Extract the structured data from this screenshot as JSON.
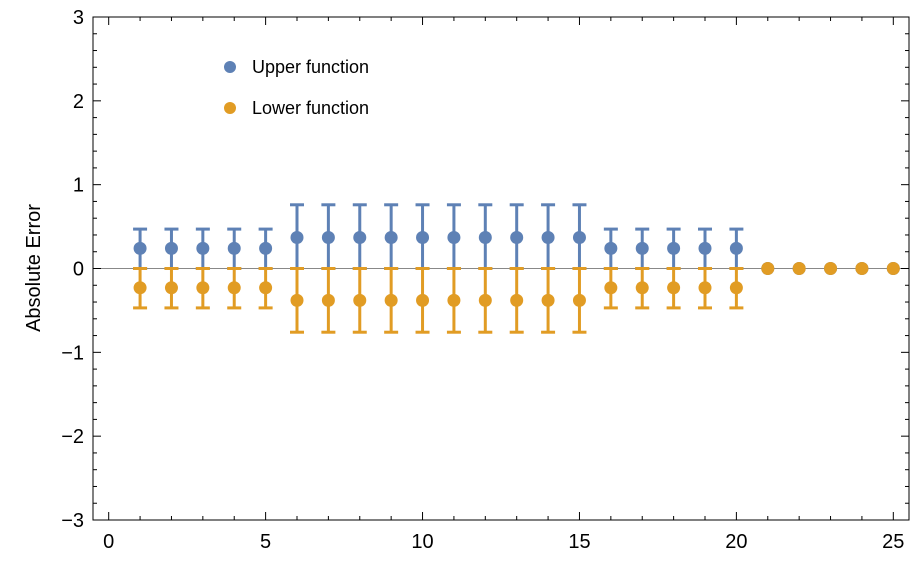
{
  "chart_data": {
    "type": "scatter",
    "title": "",
    "xlabel": "",
    "ylabel": "Absolute Error",
    "xlim": [
      -0.5,
      25.5
    ],
    "ylim": [
      -3,
      3
    ],
    "xticks": [
      0,
      5,
      10,
      15,
      20,
      25
    ],
    "xtick_labels": [
      "0",
      "5",
      "10",
      "15",
      "20",
      "25"
    ],
    "yticks": [
      -3,
      -2,
      -1,
      0,
      1,
      2,
      3
    ],
    "ytick_labels": [
      "−3",
      "−2",
      "−1",
      "0",
      "1",
      "2",
      "3"
    ],
    "grid": false,
    "legend_position": "top-left",
    "series": [
      {
        "name": "Upper function",
        "color": "#5e81b5",
        "x": [
          1,
          2,
          3,
          4,
          5,
          6,
          7,
          8,
          9,
          10,
          11,
          12,
          13,
          14,
          15,
          16,
          17,
          18,
          19,
          20,
          21,
          22,
          23,
          24,
          25
        ],
        "values": [
          0.24,
          0.24,
          0.24,
          0.24,
          0.24,
          0.37,
          0.37,
          0.37,
          0.37,
          0.37,
          0.37,
          0.37,
          0.37,
          0.37,
          0.37,
          0.24,
          0.24,
          0.24,
          0.24,
          0.24,
          0,
          0,
          0,
          0,
          0
        ],
        "error_low": [
          0,
          0,
          0,
          0,
          0,
          0,
          0,
          0,
          0,
          0,
          0,
          0,
          0,
          0,
          0,
          0,
          0,
          0,
          0,
          0,
          0,
          0,
          0,
          0,
          0
        ],
        "error_high": [
          0.47,
          0.47,
          0.47,
          0.47,
          0.47,
          0.76,
          0.76,
          0.76,
          0.76,
          0.76,
          0.76,
          0.76,
          0.76,
          0.76,
          0.76,
          0.47,
          0.47,
          0.47,
          0.47,
          0.47,
          0,
          0,
          0,
          0,
          0
        ]
      },
      {
        "name": "Lower function",
        "color": "#e19c24",
        "x": [
          1,
          2,
          3,
          4,
          5,
          6,
          7,
          8,
          9,
          10,
          11,
          12,
          13,
          14,
          15,
          16,
          17,
          18,
          19,
          20,
          21,
          22,
          23,
          24,
          25
        ],
        "values": [
          -0.23,
          -0.23,
          -0.23,
          -0.23,
          -0.23,
          -0.38,
          -0.38,
          -0.38,
          -0.38,
          -0.38,
          -0.38,
          -0.38,
          -0.38,
          -0.38,
          -0.38,
          -0.23,
          -0.23,
          -0.23,
          -0.23,
          -0.23,
          0,
          0,
          0,
          0,
          0
        ],
        "error_low": [
          -0.47,
          -0.47,
          -0.47,
          -0.47,
          -0.47,
          -0.76,
          -0.76,
          -0.76,
          -0.76,
          -0.76,
          -0.76,
          -0.76,
          -0.76,
          -0.76,
          -0.76,
          -0.47,
          -0.47,
          -0.47,
          -0.47,
          -0.47,
          0,
          0,
          0,
          0,
          0
        ],
        "error_high": [
          0,
          0,
          0,
          0,
          0,
          0,
          0,
          0,
          0,
          0,
          0,
          0,
          0,
          0,
          0,
          0,
          0,
          0,
          0,
          0,
          0,
          0,
          0,
          0,
          0
        ]
      }
    ]
  }
}
